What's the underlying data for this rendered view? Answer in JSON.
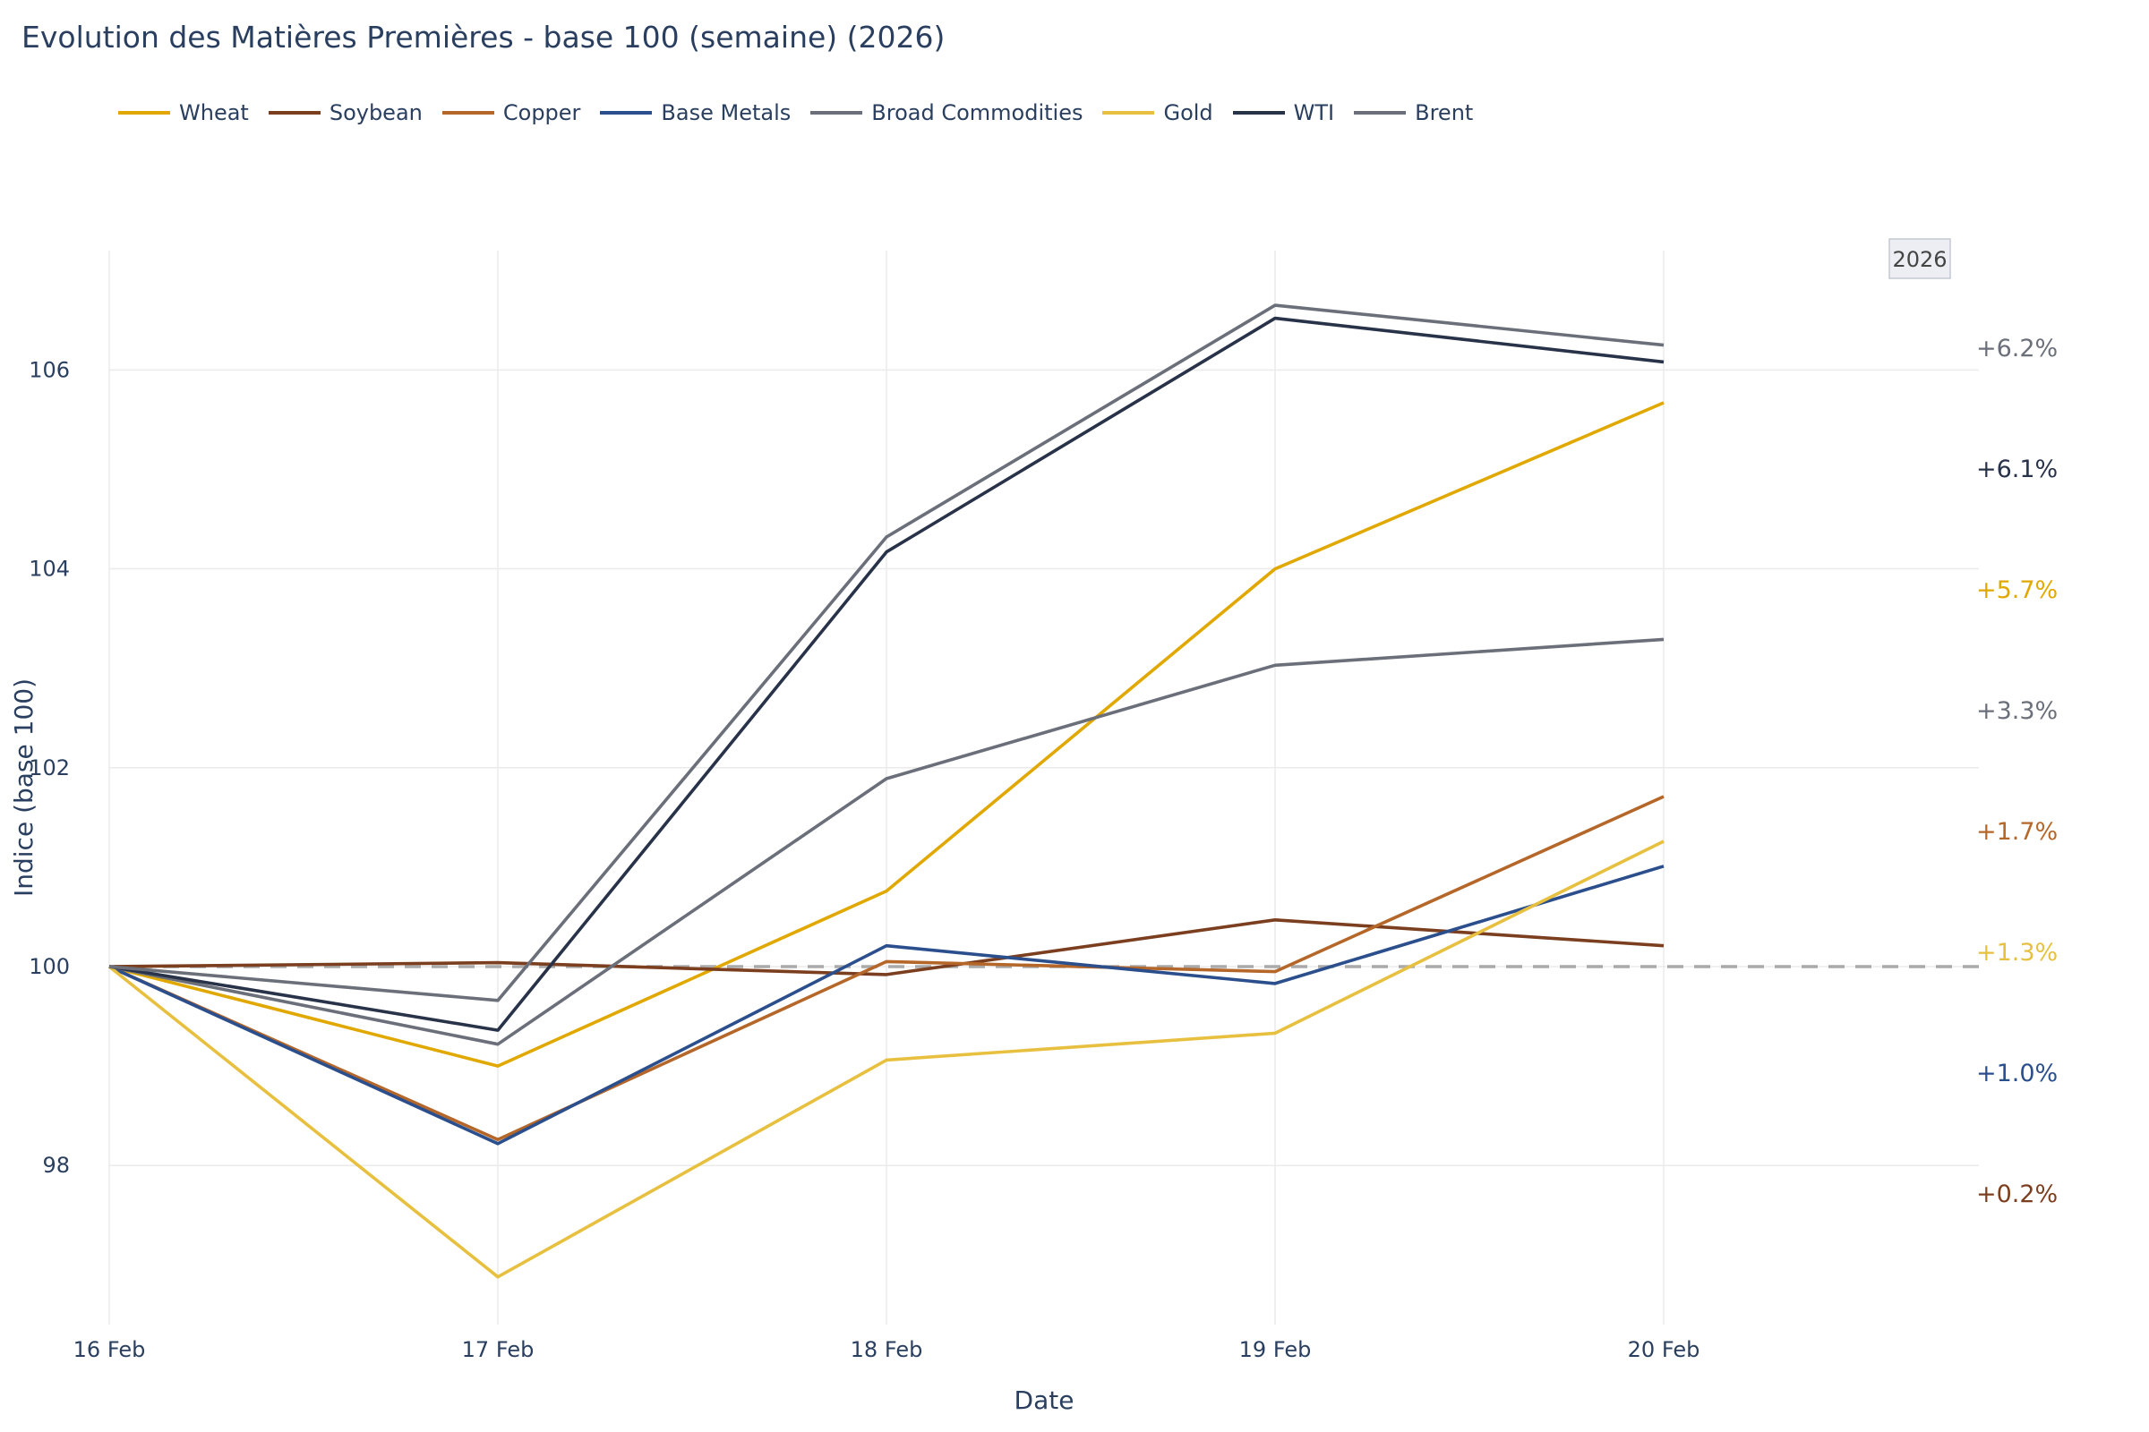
{
  "chart_data": {
    "type": "line",
    "title": "Evolution des Matières Premières - base 100 (semaine) (2026)",
    "xlabel": "Date",
    "ylabel": "Indice (base 100)",
    "x": [
      "16 Feb",
      "17 Feb",
      "18 Feb",
      "19 Feb",
      "20 Feb"
    ],
    "ylim": [
      96.4,
      107.2
    ],
    "yticks": [
      98,
      100,
      102,
      104,
      106
    ],
    "grid": true,
    "legend_position": "top-left",
    "reference_line": 100,
    "year_badge": "2026",
    "series": [
      {
        "name": "Wheat",
        "color": "#E0A800",
        "values": [
          100,
          99.0,
          100.76,
          104.0,
          105.67
        ]
      },
      {
        "name": "Soybean",
        "color": "#7B3F20",
        "values": [
          100,
          100.04,
          99.92,
          100.47,
          100.21
        ]
      },
      {
        "name": "Copper",
        "color": "#B5672A",
        "values": [
          100,
          98.26,
          100.05,
          99.95,
          101.71
        ]
      },
      {
        "name": "Base Metals",
        "color": "#2B4E8C",
        "values": [
          100,
          98.22,
          100.21,
          99.83,
          101.01
        ]
      },
      {
        "name": "Broad Commodities",
        "color": "#6B6F7A",
        "values": [
          100,
          99.22,
          101.89,
          103.03,
          103.29
        ]
      },
      {
        "name": "Gold",
        "color": "#E8C040",
        "values": [
          100,
          96.88,
          99.06,
          99.33,
          101.26
        ]
      },
      {
        "name": "WTI",
        "color": "#283248",
        "values": [
          100,
          99.36,
          104.17,
          106.52,
          106.08
        ]
      },
      {
        "name": "Brent",
        "color": "#6B6F7A",
        "values": [
          100,
          99.66,
          104.32,
          106.65,
          106.25
        ]
      }
    ],
    "end_labels": [
      {
        "text": "+6.2%",
        "color": "#6B6F7A"
      },
      {
        "text": "+6.1%",
        "color": "#283248"
      },
      {
        "text": "+5.7%",
        "color": "#E0A800"
      },
      {
        "text": "+3.3%",
        "color": "#6B6F7A"
      },
      {
        "text": "+1.7%",
        "color": "#B5672A"
      },
      {
        "text": "+1.3%",
        "color": "#E8C040"
      },
      {
        "text": "+1.0%",
        "color": "#2B4E8C"
      },
      {
        "text": "+0.2%",
        "color": "#7B3F20"
      }
    ]
  }
}
